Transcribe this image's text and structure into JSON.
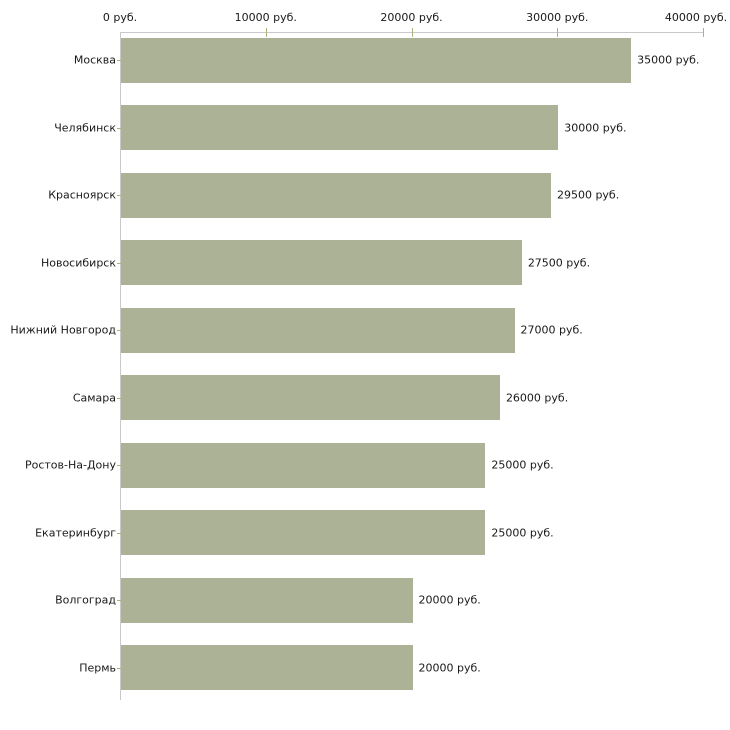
{
  "chart_data": {
    "type": "bar",
    "orientation": "horizontal",
    "title": "",
    "xlabel": "",
    "ylabel": "",
    "grid": false,
    "legend": false,
    "categories": [
      "Москва",
      "Челябинск",
      "Красноярск",
      "Новосибирск",
      "Нижний Новгород",
      "Самара",
      "Ростов-На-Дону",
      "Екатеринбург",
      "Волгоград",
      "Пермь"
    ],
    "values": [
      35000,
      30000,
      29500,
      27500,
      27000,
      26000,
      25000,
      25000,
      20000,
      20000
    ],
    "value_labels": [
      "35000 руб.",
      "30000 руб.",
      "29500 руб.",
      "27500 руб.",
      "27000 руб.",
      "26000 руб.",
      "25000 руб.",
      "25000 руб.",
      "20000 руб.",
      "20000 руб."
    ],
    "x_axis": {
      "position": "top",
      "range": [
        0,
        40000
      ],
      "ticks": [
        0,
        10000,
        20000,
        30000,
        40000
      ],
      "tick_labels": [
        "0 руб.",
        "10000 руб.",
        "20000 руб.",
        "30000 руб.",
        "40000 руб."
      ]
    },
    "colors": {
      "bar": "#abb296",
      "tick": "#b0b07c",
      "axis_line": "#c9c9c9",
      "text": "#1a1a1a",
      "background": "#ffffff"
    }
  }
}
